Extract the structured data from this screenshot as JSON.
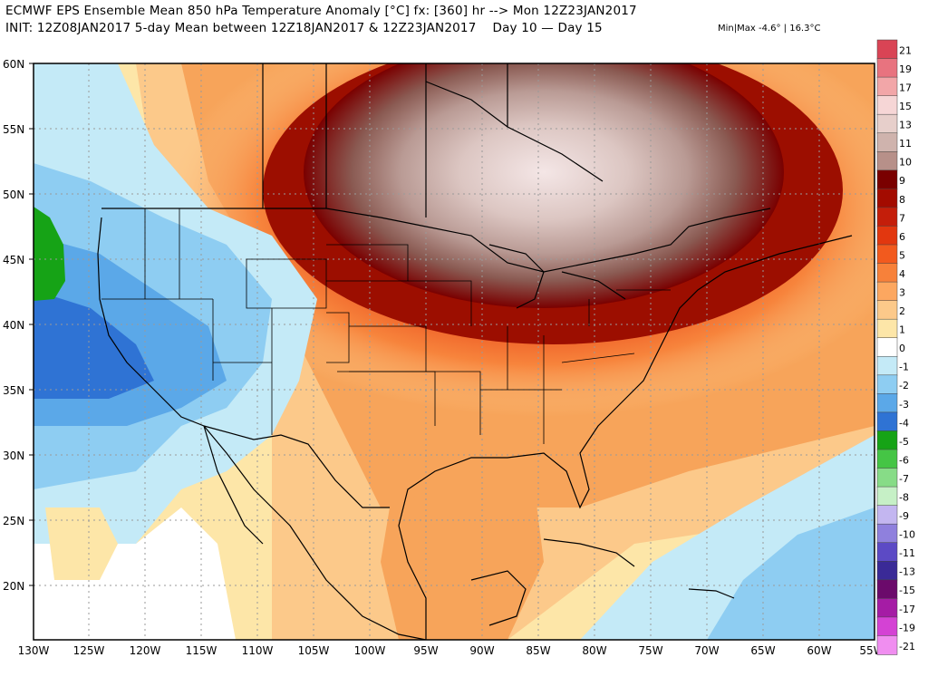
{
  "header": {
    "line1": "ECMWF EPS Ensemble Mean 850 hPa Temperature Anomaly [°C] fx: [360] hr --> Mon 12Z23JAN2017",
    "line2": "INIT: 12Z08JAN2017 5-day Mean between 12Z18JAN2017 & 12Z23JAN2017    Day 10 — Day 15",
    "minmax": "Min|Max -4.6° | 16.3°C"
  },
  "axes": {
    "lat_labels": [
      "60N",
      "55N",
      "50N",
      "45N",
      "40N",
      "35N",
      "30N",
      "25N",
      "20N"
    ],
    "lon_labels": [
      "130W",
      "125W",
      "120W",
      "115W",
      "110W",
      "105W",
      "100W",
      "95W",
      "90W",
      "85W",
      "80W",
      "75W",
      "70W",
      "65W",
      "60W",
      "55W"
    ]
  },
  "colorbar": {
    "labels": [
      "21",
      "19",
      "17",
      "15",
      "13",
      "11",
      "10",
      "9",
      "8",
      "7",
      "6",
      "5",
      "4",
      "3",
      "2",
      "1",
      "0",
      "-1",
      "-2",
      "-3",
      "-4",
      "-5",
      "-6",
      "-7",
      "-8",
      "-9",
      "-10",
      "-11",
      "-13",
      "-15",
      "-17",
      "-19",
      "-21"
    ],
    "colors": [
      "#d94455",
      "#e8737f",
      "#f2a6a8",
      "#f6d6d6",
      "#e7cfcb",
      "#cfb3ad",
      "#b79089",
      "#7a0000",
      "#a30b00",
      "#c41e0a",
      "#e2370f",
      "#f25a1e",
      "#f7813a",
      "#fca760",
      "#fcc98a",
      "#fde6a8",
      "#ffffff",
      "#c4eaf7",
      "#8ecdf2",
      "#5ba8e8",
      "#2f73d4",
      "#16a316",
      "#45c545",
      "#87dc87",
      "#c6f0c6",
      "#c3b6f0",
      "#8f80dd",
      "#5c4ac5",
      "#3a2a97",
      "#6b0a6b",
      "#a51ca5",
      "#d442d4",
      "#f08ef0"
    ]
  },
  "map": {
    "region": "North America",
    "ocean_color": "#ffffff"
  }
}
